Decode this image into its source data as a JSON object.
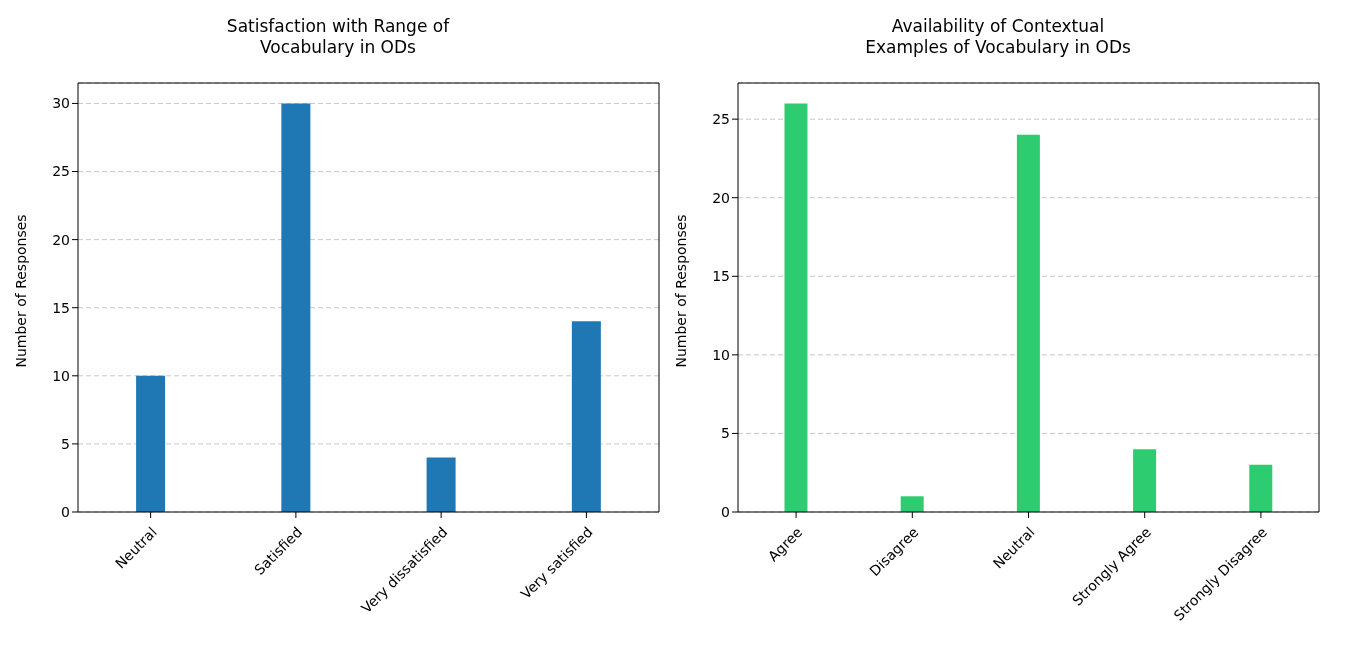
{
  "chart_data": [
    {
      "type": "bar",
      "title": "Satisfaction with Range of\nVocabulary in ODs",
      "ylabel": "Number of Responses",
      "categories": [
        "Neutral",
        "Satisfied",
        "Very dissatisfied",
        "Very satisfied"
      ],
      "values": [
        10,
        30,
        4,
        14
      ],
      "color": "#1f77b4",
      "ylim": [
        0,
        31.5
      ],
      "yticks": [
        0,
        5,
        10,
        15,
        20,
        25,
        30
      ],
      "grid": "y",
      "line_style": "dashed"
    },
    {
      "type": "bar",
      "title": "Availability of Contextual\nExamples of Vocabulary in ODs",
      "ylabel": "Number of Responses",
      "categories": [
        "Agree",
        "Disagree",
        "Neutral",
        "Strongly Agree",
        "Strongly Disagree"
      ],
      "values": [
        26,
        1,
        24,
        4,
        3
      ],
      "color": "#2ecc71",
      "ylim": [
        0,
        27.3
      ],
      "yticks": [
        0,
        5,
        10,
        15,
        20,
        25
      ],
      "grid": "y",
      "line_style": "dashed"
    }
  ]
}
